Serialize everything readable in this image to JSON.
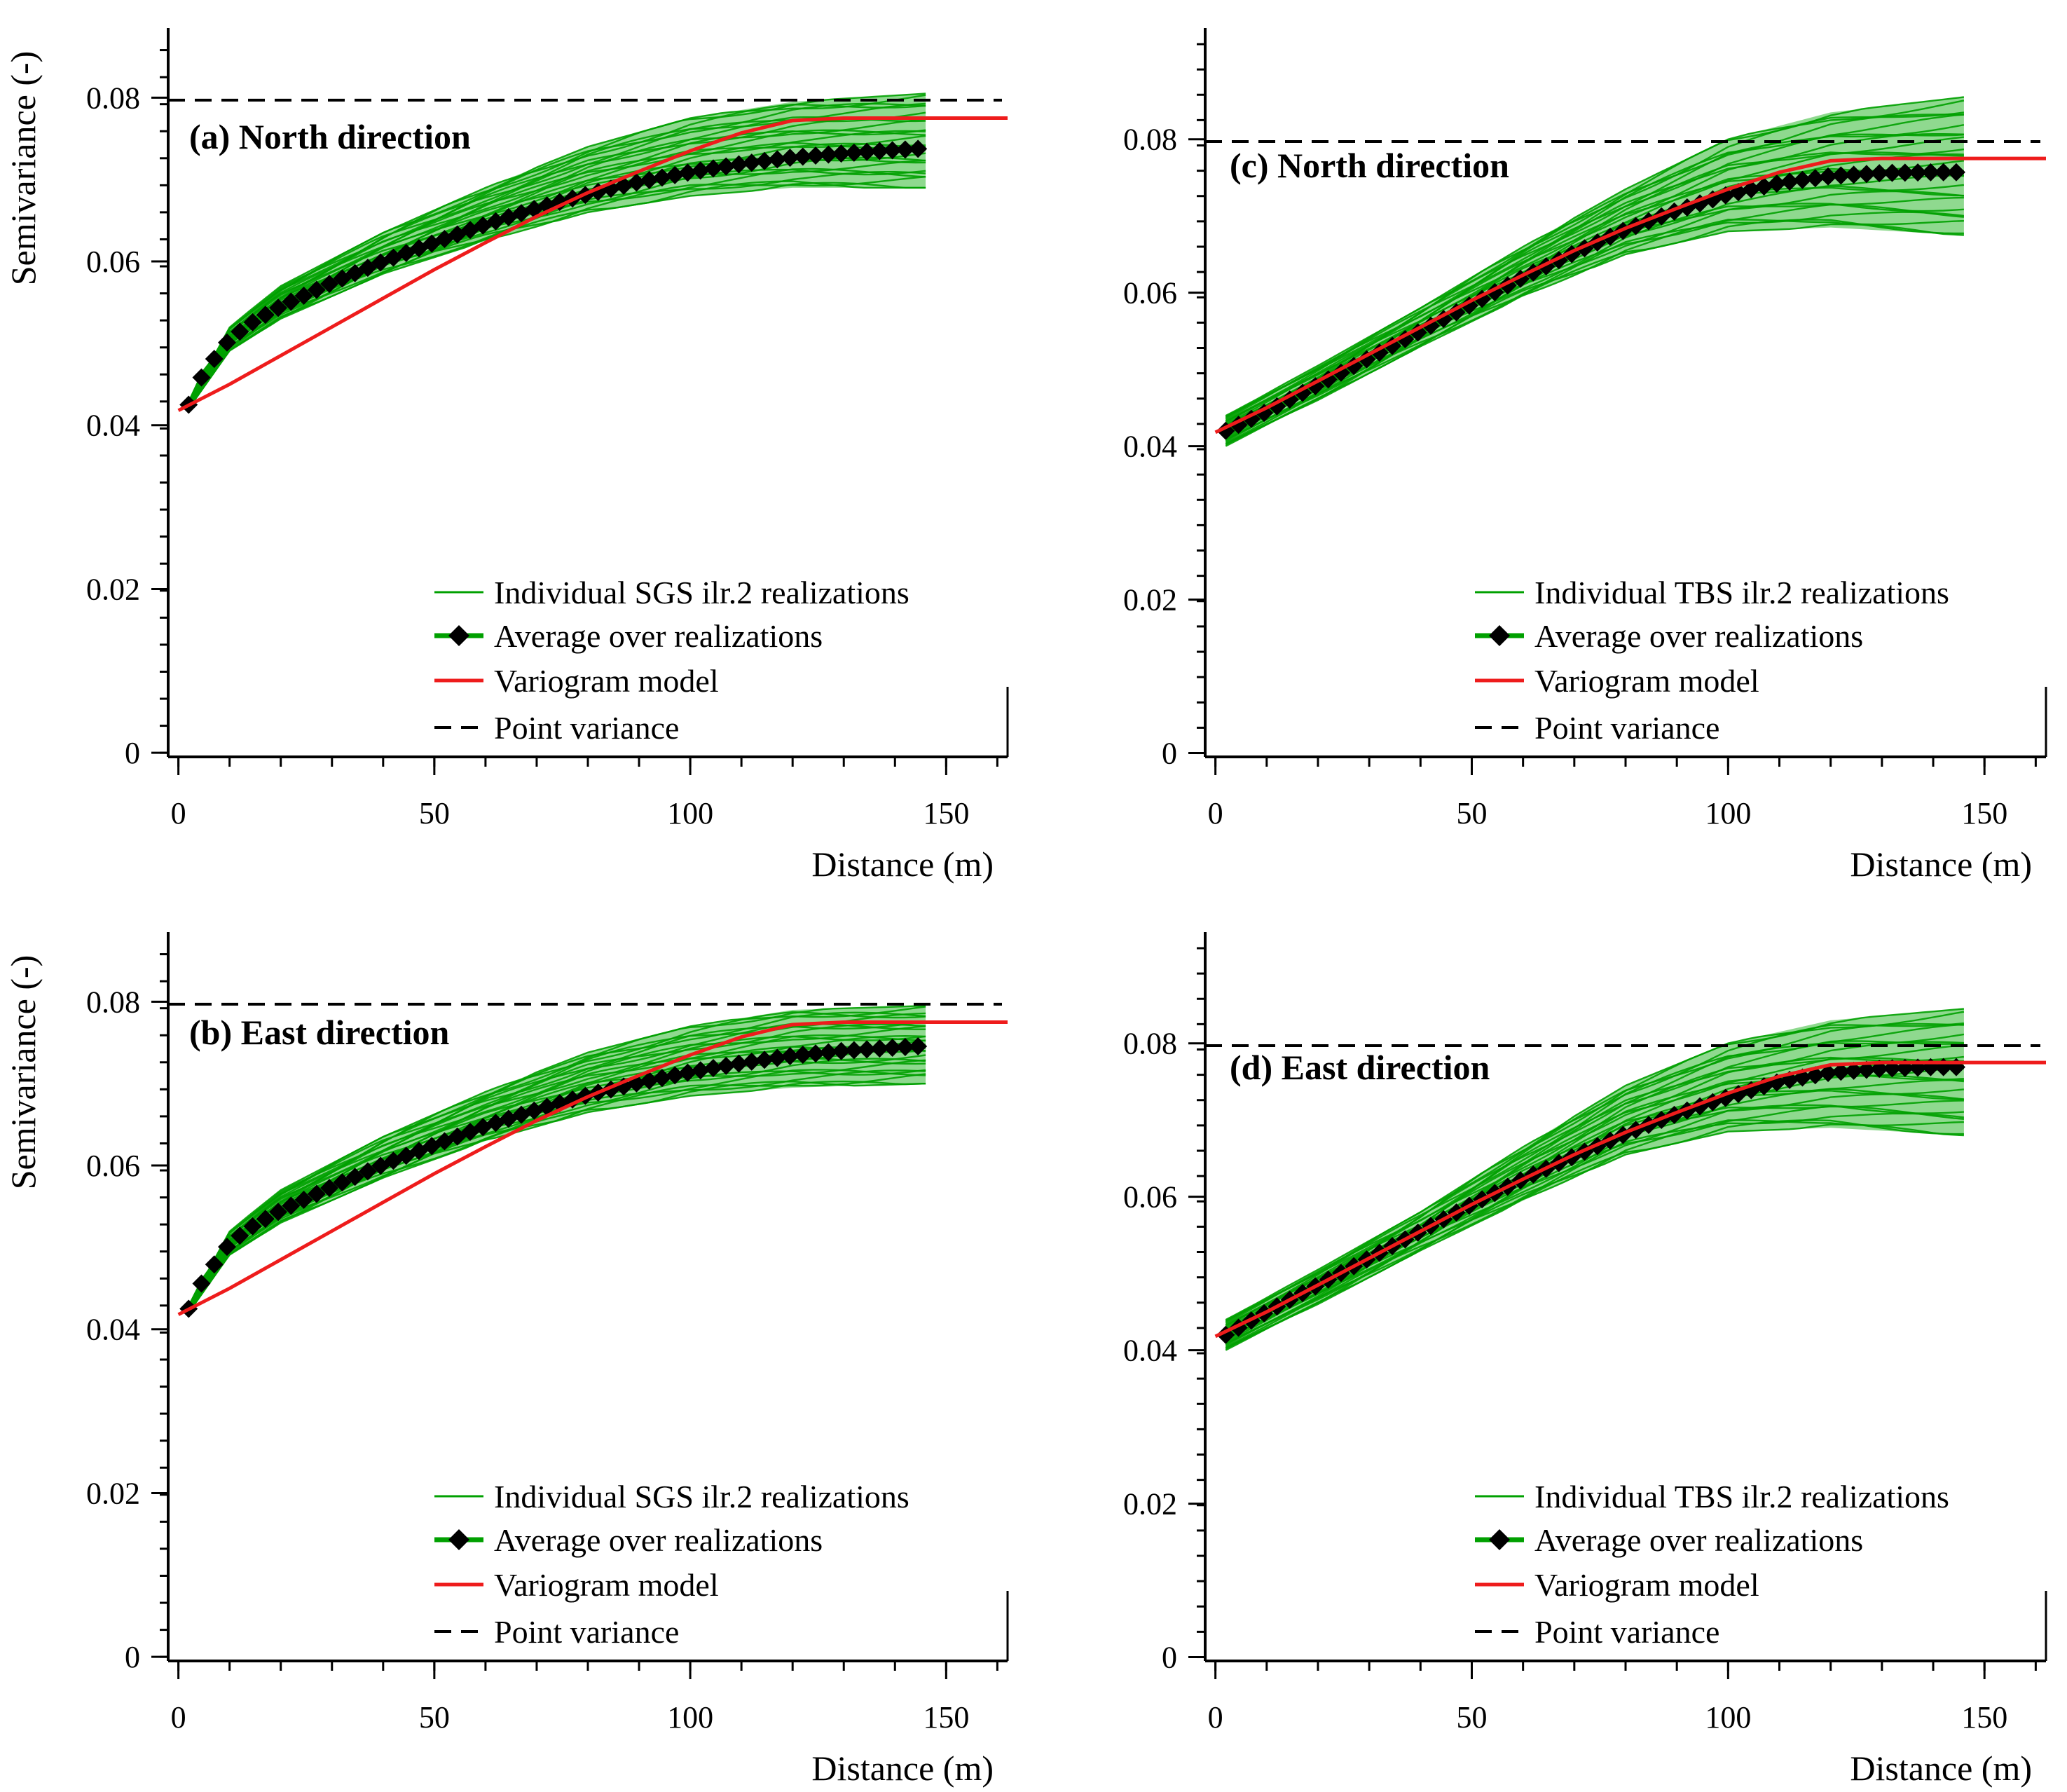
{
  "colors": {
    "realization": "#00a000",
    "realization_band": "#8fd98f",
    "average_line": "#00a000",
    "average_marker": "#000000",
    "model": "#ee1c1c",
    "point_variance": "#000000",
    "axis": "#000000"
  },
  "chart_data": [
    {
      "panel": "a",
      "type": "line",
      "title": "(a) North direction",
      "xlabel": "Distance (m)",
      "ylabel": "Semivariance (-)",
      "xlim": [
        -2,
        162
      ],
      "ylim": [
        -0.0005,
        0.0885
      ],
      "xticks": [
        0,
        50,
        100,
        150
      ],
      "xtick_labels": [
        "0",
        "50",
        "100",
        "150"
      ],
      "yticks": [
        0,
        0.02,
        0.04,
        0.06,
        0.08
      ],
      "ytick_labels": [
        "0",
        "0.02",
        "0.04",
        "0.06",
        "0.08"
      ],
      "legend": [
        {
          "label": "Individual SGS ilr.2 realizations",
          "kind": "realization"
        },
        {
          "label": "Average over realizations",
          "kind": "average"
        },
        {
          "label": "Variogram model",
          "kind": "model"
        },
        {
          "label": "Point variance",
          "kind": "point"
        }
      ],
      "point_variance": 0.0797,
      "realizations_band": {
        "x": [
          2,
          10,
          20,
          40,
          60,
          80,
          100,
          120,
          146
        ],
        "upper": [
          0.0428,
          0.052,
          0.057,
          0.0635,
          0.069,
          0.074,
          0.0775,
          0.0795,
          0.0805
        ],
        "lower": [
          0.042,
          0.049,
          0.053,
          0.0585,
          0.0625,
          0.066,
          0.068,
          0.069,
          0.069
        ]
      },
      "average": {
        "x": [
          2,
          5,
          10,
          15,
          20,
          30,
          40,
          50,
          60,
          70,
          80,
          90,
          100,
          110,
          120,
          130,
          140,
          146
        ],
        "y": [
          0.0425,
          0.0465,
          0.0505,
          0.0528,
          0.0545,
          0.0574,
          0.06,
          0.0623,
          0.0645,
          0.0665,
          0.0682,
          0.0697,
          0.0709,
          0.0719,
          0.0727,
          0.0732,
          0.0736,
          0.0738
        ]
      },
      "model": {
        "x": [
          0,
          10,
          20,
          30,
          40,
          50,
          60,
          70,
          80,
          90,
          100,
          110,
          120,
          130,
          140,
          150,
          162
        ],
        "y": [
          0.0418,
          0.045,
          0.0485,
          0.052,
          0.0555,
          0.059,
          0.0623,
          0.0655,
          0.0684,
          0.071,
          0.0735,
          0.0757,
          0.0772,
          0.0775,
          0.0775,
          0.0775,
          0.0775
        ]
      }
    },
    {
      "panel": "b",
      "type": "line",
      "title": "(b) East direction",
      "xlabel": "Distance (m)",
      "ylabel": "Semivariance (-)",
      "xlim": [
        -2,
        162
      ],
      "ylim": [
        -0.0005,
        0.0885
      ],
      "xticks": [
        0,
        50,
        100,
        150
      ],
      "xtick_labels": [
        "0",
        "50",
        "100",
        "150"
      ],
      "yticks": [
        0,
        0.02,
        0.04,
        0.06,
        0.08
      ],
      "ytick_labels": [
        "0",
        "0.02",
        "0.04",
        "0.06",
        "0.08"
      ],
      "legend": [
        {
          "label": "Individual SGS ilr.2 realizations",
          "kind": "realization"
        },
        {
          "label": "Average over realizations",
          "kind": "average"
        },
        {
          "label": "Variogram model",
          "kind": "model"
        },
        {
          "label": "Point variance",
          "kind": "point"
        }
      ],
      "point_variance": 0.0797,
      "realizations_band": {
        "x": [
          2,
          10,
          20,
          40,
          60,
          80,
          100,
          120,
          146
        ],
        "upper": [
          0.0428,
          0.052,
          0.057,
          0.0635,
          0.069,
          0.0738,
          0.077,
          0.079,
          0.0795
        ],
        "lower": [
          0.042,
          0.049,
          0.053,
          0.0585,
          0.063,
          0.0665,
          0.0685,
          0.0695,
          0.07
        ]
      },
      "average": {
        "x": [
          2,
          5,
          10,
          15,
          20,
          30,
          40,
          50,
          60,
          70,
          80,
          90,
          100,
          110,
          120,
          130,
          140,
          146
        ],
        "y": [
          0.0425,
          0.0462,
          0.0505,
          0.0528,
          0.0545,
          0.0574,
          0.0601,
          0.0625,
          0.0648,
          0.0668,
          0.0686,
          0.0701,
          0.0714,
          0.0725,
          0.0734,
          0.074,
          0.0744,
          0.0746
        ]
      },
      "model": {
        "x": [
          0,
          10,
          20,
          30,
          40,
          50,
          60,
          70,
          80,
          90,
          100,
          110,
          120,
          130,
          140,
          150,
          162
        ],
        "y": [
          0.0418,
          0.045,
          0.0485,
          0.052,
          0.0555,
          0.059,
          0.0623,
          0.0655,
          0.0684,
          0.071,
          0.0735,
          0.0757,
          0.0772,
          0.0775,
          0.0775,
          0.0775,
          0.0775
        ]
      }
    },
    {
      "panel": "c",
      "type": "line",
      "title": "(c) North direction",
      "xlabel": "Distance (m)",
      "ylabel": "",
      "xlim": [
        -2,
        162
      ],
      "ylim": [
        -0.0005,
        0.0945
      ],
      "xticks": [
        0,
        50,
        100,
        150
      ],
      "xtick_labels": [
        "0",
        "50",
        "100",
        "150"
      ],
      "yticks": [
        0,
        0.02,
        0.04,
        0.06,
        0.08
      ],
      "ytick_labels": [
        "0",
        "0.02",
        "0.04",
        "0.06",
        "0.08"
      ],
      "legend": [
        {
          "label": "Individual TBS ilr.2 realizations",
          "kind": "realization"
        },
        {
          "label": "Average over realizations",
          "kind": "average"
        },
        {
          "label": "Variogram model",
          "kind": "model"
        },
        {
          "label": "Point variance",
          "kind": "point"
        }
      ],
      "point_variance": 0.0797,
      "realizations_band": {
        "x": [
          2,
          20,
          40,
          60,
          80,
          100,
          120,
          146
        ],
        "upper": [
          0.044,
          0.0505,
          0.058,
          0.066,
          0.0735,
          0.08,
          0.0835,
          0.0855
        ],
        "lower": [
          0.04,
          0.046,
          0.053,
          0.0595,
          0.065,
          0.068,
          0.0685,
          0.0675
        ]
      },
      "average": {
        "x": [
          2,
          10,
          20,
          30,
          40,
          50,
          60,
          70,
          80,
          90,
          100,
          110,
          120,
          130,
          140,
          146
        ],
        "y": [
          0.042,
          0.0445,
          0.048,
          0.0515,
          0.055,
          0.0585,
          0.062,
          0.0652,
          0.0682,
          0.0707,
          0.0728,
          0.0743,
          0.0752,
          0.0756,
          0.0757,
          0.0757
        ]
      },
      "model": {
        "x": [
          0,
          10,
          20,
          30,
          40,
          50,
          60,
          70,
          80,
          90,
          100,
          110,
          120,
          130,
          140,
          150,
          162
        ],
        "y": [
          0.0418,
          0.045,
          0.0485,
          0.052,
          0.0555,
          0.059,
          0.0623,
          0.0655,
          0.0684,
          0.071,
          0.0735,
          0.0757,
          0.0772,
          0.0775,
          0.0775,
          0.0775,
          0.0775
        ]
      }
    },
    {
      "panel": "d",
      "type": "line",
      "title": "(d) East direction",
      "xlabel": "Distance (m)",
      "ylabel": "",
      "xlim": [
        -2,
        162
      ],
      "ylim": [
        -0.0005,
        0.0945
      ],
      "xticks": [
        0,
        50,
        100,
        150
      ],
      "xtick_labels": [
        "0",
        "50",
        "100",
        "150"
      ],
      "yticks": [
        0,
        0.02,
        0.04,
        0.06,
        0.08
      ],
      "ytick_labels": [
        "0",
        "0.02",
        "0.04",
        "0.06",
        "0.08"
      ],
      "legend": [
        {
          "label": "Individual TBS ilr.2 realizations",
          "kind": "realization"
        },
        {
          "label": "Average over realizations",
          "kind": "average"
        },
        {
          "label": "Variogram model",
          "kind": "model"
        },
        {
          "label": "Point variance",
          "kind": "point"
        }
      ],
      "point_variance": 0.0797,
      "realizations_band": {
        "x": [
          2,
          20,
          40,
          60,
          80,
          100,
          120,
          146
        ],
        "upper": [
          0.044,
          0.0505,
          0.058,
          0.0665,
          0.0745,
          0.08,
          0.083,
          0.0845
        ],
        "lower": [
          0.04,
          0.046,
          0.053,
          0.0595,
          0.0655,
          0.0685,
          0.069,
          0.068
        ]
      },
      "average": {
        "x": [
          2,
          10,
          20,
          30,
          40,
          50,
          60,
          70,
          80,
          90,
          100,
          110,
          120,
          130,
          140,
          146
        ],
        "y": [
          0.042,
          0.045,
          0.0485,
          0.052,
          0.0555,
          0.059,
          0.0623,
          0.0653,
          0.0682,
          0.0708,
          0.073,
          0.075,
          0.0762,
          0.0767,
          0.0769,
          0.0769
        ]
      },
      "model": {
        "x": [
          0,
          10,
          20,
          30,
          40,
          50,
          60,
          70,
          80,
          90,
          100,
          110,
          120,
          130,
          140,
          150,
          162
        ],
        "y": [
          0.0418,
          0.045,
          0.0485,
          0.052,
          0.0555,
          0.059,
          0.0623,
          0.0655,
          0.0684,
          0.071,
          0.0735,
          0.0757,
          0.0772,
          0.0775,
          0.0775,
          0.0775,
          0.0775
        ]
      }
    }
  ]
}
